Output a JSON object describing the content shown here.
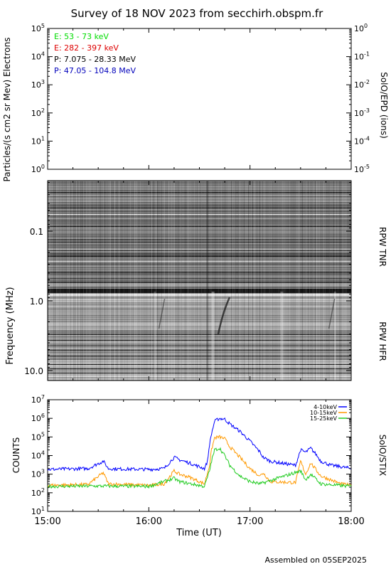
{
  "title": "Survey of 18 NOV 2023 from secchirh.obspm.fr",
  "footer": "Assembled on 05SEP2025",
  "colors": {
    "green": "#00dd00",
    "red": "#dd0000",
    "black": "#000000",
    "blue": "#0000bb",
    "orange": "#ff9900",
    "stix_blue": "#0000ff",
    "stix_green": "#22cc22"
  },
  "chart_data": [
    {
      "type": "line",
      "panel": "SolO/EPD (ions)",
      "ylabel": "Particles/(s cm2 sr Mev) Electrons",
      "y2label": "SolO/EPD (ions)",
      "ylim": [
        1,
        100000
      ],
      "y2lim": [
        1e-05,
        1
      ],
      "yscale": "log",
      "y_ticks": [
        "10^0",
        "10^1",
        "10^2",
        "10^3",
        "10^4",
        "10^5"
      ],
      "y2_ticks": [
        "10^-5",
        "10^-4",
        "10^-3",
        "10^-2",
        "10^-1",
        "10^0"
      ],
      "legend_placement": "top-left",
      "series": [
        {
          "name": "E: 53 - 73 keV",
          "color_key": "green",
          "values": []
        },
        {
          "name": "E: 282 - 397 keV",
          "color_key": "red",
          "values": []
        },
        {
          "name": "P: 7.075 - 28.33 MeV",
          "color_key": "black",
          "values": []
        },
        {
          "name": "P: 47.05 - 104.8 MeV",
          "color_key": "blue",
          "values": []
        }
      ]
    },
    {
      "type": "heatmap",
      "panel": "RPW TNR / RPW HFR",
      "ylabel": "Frequency (MHz)",
      "yscale": "log",
      "y_inverted": true,
      "y_ticks": [
        "0.1",
        "1.0",
        "10.0"
      ],
      "right_labels": [
        "RPW TNR",
        "RPW HFR"
      ],
      "features": [
        {
          "time": "16:45",
          "note": "drifting burst"
        },
        {
          "time": "16:37",
          "note": "broadband vertical feature"
        },
        {
          "time": "16:02",
          "note": "vertical feature"
        },
        {
          "time": "17:32",
          "note": "vertical feature"
        }
      ]
    },
    {
      "type": "line",
      "panel": "SolO/STIX",
      "ylabel": "COUNTS",
      "y2label": "SolO/STIX",
      "xlabel": "Time (UT)",
      "x_ticks": [
        "15:00",
        "16:00",
        "17:00",
        "18:00"
      ],
      "xlim_hours": [
        15,
        18
      ],
      "ylim": [
        10,
        10000000
      ],
      "yscale": "log",
      "y_ticks": [
        "10^1",
        "10^2",
        "10^3",
        "10^4",
        "10^5",
        "10^6",
        "10^7"
      ],
      "legend_placement": "top-right",
      "series": [
        {
          "name": "4-10keV",
          "color_key": "stix_blue",
          "x": [
            15.0,
            15.2,
            15.4,
            15.55,
            15.6,
            15.7,
            16.0,
            16.15,
            16.25,
            16.3,
            16.4,
            16.5,
            16.55,
            16.58,
            16.6,
            16.62,
            16.65,
            16.7,
            16.75,
            16.8,
            16.9,
            17.0,
            17.1,
            17.13,
            17.2,
            17.3,
            17.45,
            17.5,
            17.55,
            17.6,
            17.65,
            17.7,
            17.8,
            17.9,
            18.0
          ],
          "values": [
            1800,
            1900,
            2000,
            5000,
            2000,
            1900,
            1800,
            2000,
            8000,
            6000,
            4000,
            2500,
            2000,
            5000,
            40000,
            150000,
            700000,
            1000000,
            900000,
            500000,
            200000,
            60000,
            15000,
            8000,
            5000,
            4000,
            3000,
            20000,
            15000,
            25000,
            12000,
            5000,
            3000,
            2500,
            2000
          ]
        },
        {
          "name": "10-15keV",
          "color_key": "orange",
          "x": [
            15.0,
            15.4,
            15.55,
            15.6,
            16.0,
            16.15,
            16.25,
            16.3,
            16.4,
            16.55,
            16.6,
            16.62,
            16.65,
            16.7,
            16.75,
            16.8,
            16.9,
            17.0,
            17.1,
            17.13,
            17.2,
            17.45,
            17.5,
            17.55,
            17.6,
            17.7,
            17.9,
            18.0
          ],
          "values": [
            250,
            280,
            1200,
            300,
            250,
            300,
            1500,
            1000,
            700,
            300,
            3000,
            20000,
            90000,
            100000,
            80000,
            30000,
            8000,
            2000,
            800,
            1200,
            400,
            350,
            5000,
            1000,
            4000,
            800,
            300,
            250
          ]
        },
        {
          "name": "15-25keV",
          "color_key": "stix_green",
          "x": [
            15.0,
            15.5,
            16.0,
            16.25,
            16.3,
            16.55,
            16.6,
            16.62,
            16.65,
            16.7,
            16.75,
            16.8,
            16.9,
            17.0,
            17.1,
            17.5,
            17.55,
            17.6,
            17.7,
            18.0
          ],
          "values": [
            220,
            230,
            220,
            600,
            400,
            220,
            1500,
            5000,
            20000,
            25000,
            10000,
            3000,
            800,
            400,
            300,
            1500,
            500,
            1000,
            300,
            220
          ]
        }
      ]
    }
  ]
}
